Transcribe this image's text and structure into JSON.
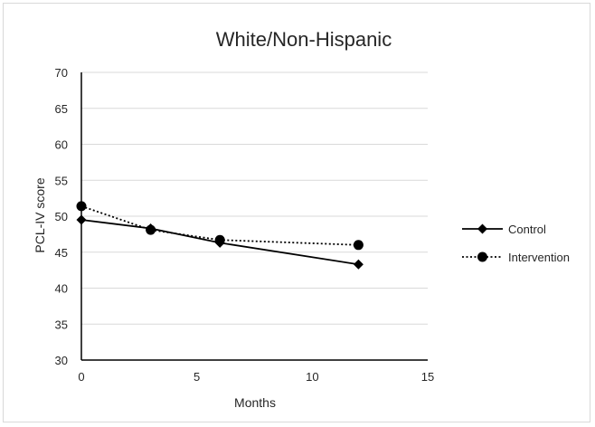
{
  "chart_data": {
    "type": "line",
    "title": "White/Non-Hispanic",
    "xlabel": "Months",
    "ylabel": "PCL-IV  score",
    "xlim": [
      0,
      15
    ],
    "ylim": [
      30,
      70
    ],
    "x_ticks": [
      "0",
      "5",
      "10",
      "15"
    ],
    "y_ticks": [
      "30",
      "35",
      "40",
      "45",
      "50",
      "55",
      "60",
      "65",
      "70"
    ],
    "grid": "horizontal",
    "legend_position": "right",
    "series": [
      {
        "name": "Control",
        "x": [
          0,
          3,
          6,
          12
        ],
        "values": [
          49.5,
          48.3,
          46.3,
          43.3
        ],
        "marker": "diamond",
        "line_style": "solid",
        "color": "#000000"
      },
      {
        "name": "Intervention",
        "x": [
          0,
          3,
          6,
          12
        ],
        "values": [
          51.4,
          48.1,
          46.7,
          46.0
        ],
        "marker": "circle",
        "line_style": "dotted",
        "color": "#000000"
      }
    ]
  }
}
